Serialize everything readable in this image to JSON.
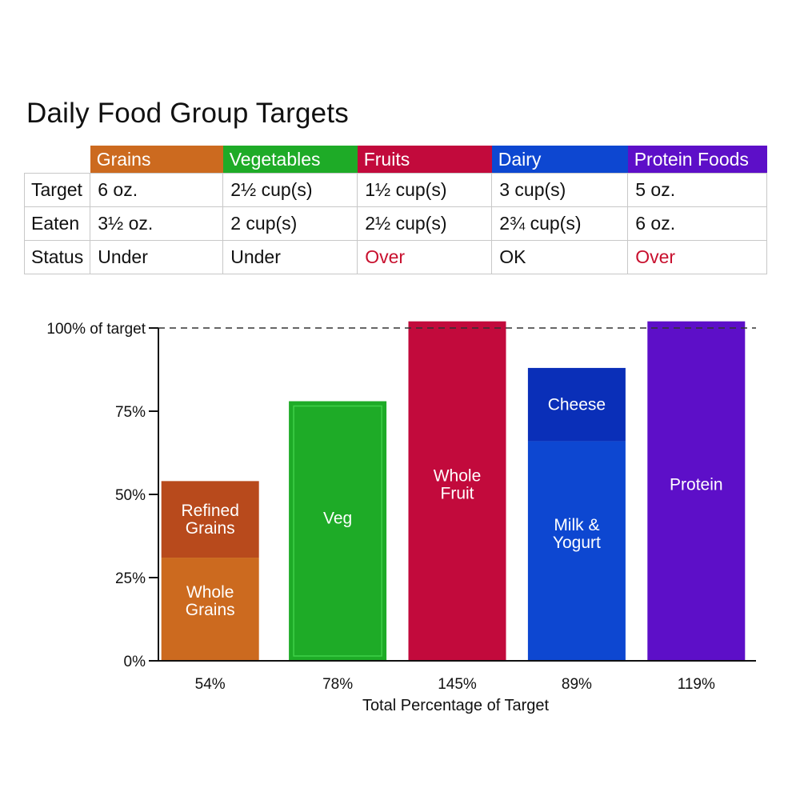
{
  "title": "Daily Food Group Targets",
  "table": {
    "groups": [
      {
        "name": "Grains",
        "color": "#cc6a1f"
      },
      {
        "name": "Vegetables",
        "color": "#1eab27"
      },
      {
        "name": "Fruits",
        "color": "#c20a3c"
      },
      {
        "name": "Dairy",
        "color": "#0d47d1"
      },
      {
        "name": "Protein Foods",
        "color": "#5d0fc8"
      }
    ],
    "rows": [
      {
        "label": "Target",
        "values": [
          "6 oz.",
          "2½ cup(s)",
          "1½ cup(s)",
          "3 cup(s)",
          "5 oz."
        ]
      },
      {
        "label": "Eaten",
        "values": [
          "3½ oz.",
          "2 cup(s)",
          "2½ cup(s)",
          "2¾ cup(s)",
          "6 oz."
        ]
      },
      {
        "label": "Status",
        "values": [
          "Under",
          "Under",
          "Over",
          "OK",
          "Over"
        ]
      }
    ],
    "status_colors": {
      "Over": "#c8102e"
    }
  },
  "chart_data": {
    "type": "bar",
    "stacked": true,
    "categories": [
      "54%",
      "78%",
      "145%",
      "89%",
      "119%"
    ],
    "xlabel": "Total Percentage of Target",
    "ylabel": "",
    "ylim": [
      0,
      100
    ],
    "yticks": [
      0,
      25,
      50,
      75,
      100
    ],
    "ytick_labels": [
      "0%",
      "25%",
      "50%",
      "75%",
      "100% of target"
    ],
    "reference_line": {
      "value": 100,
      "style": "dashed"
    },
    "bars": [
      {
        "segments": [
          {
            "label": "Whole Grains",
            "value": 31,
            "color": "#cc6a1f"
          },
          {
            "label": "Refined Grains",
            "value": 23,
            "color": "#b84a1c"
          }
        ]
      },
      {
        "segments": [
          {
            "label": "Veg",
            "value": 78,
            "color": "#1eab27"
          }
        ]
      },
      {
        "segments": [
          {
            "label": "Whole Fruit",
            "value": 102,
            "color": "#c20a3c"
          }
        ]
      },
      {
        "segments": [
          {
            "label": "Milk & Yogurt",
            "value": 66,
            "color": "#0d47d1"
          },
          {
            "label": "Cheese",
            "value": 22,
            "color": "#0a2fb8"
          }
        ]
      },
      {
        "segments": [
          {
            "label": "Protein",
            "value": 102,
            "color": "#5d0fc8"
          }
        ]
      }
    ]
  }
}
